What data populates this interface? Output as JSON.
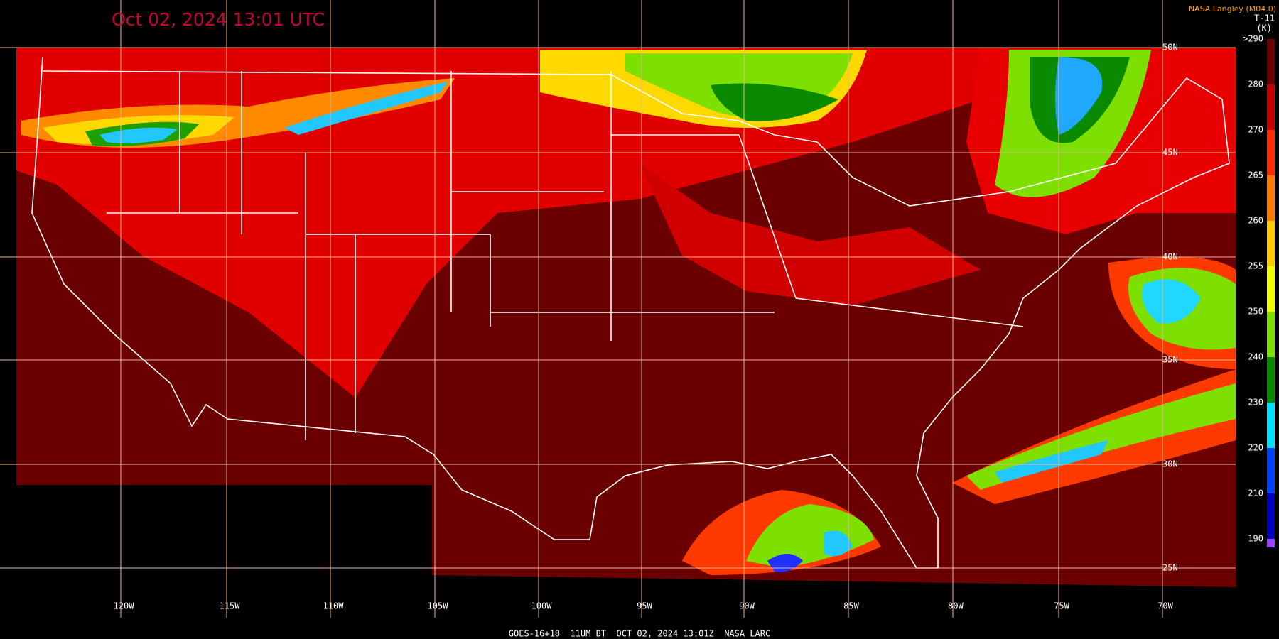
{
  "header": {
    "title": "Oct 02, 2024 13:01 UTC",
    "credit": "NASA Langley (M04.0)",
    "product": "T-11",
    "unit": "(K)"
  },
  "colorbar": {
    "ticks": [
      {
        "value": 290,
        "label": ">290"
      },
      280,
      270,
      265,
      260,
      255,
      250,
      240,
      230,
      220,
      210,
      190
    ],
    "colors": [
      "#6e0000",
      "#c40000",
      "#ff2a00",
      "#ff7a00",
      "#ffc800",
      "#f0ff00",
      "#7ee000",
      "#0a8a00",
      "#00e0ff",
      "#0040ff",
      "#0000c0",
      "#9a40ff"
    ]
  },
  "grid": {
    "lon_labels": [
      "120W",
      "115W",
      "110W",
      "105W",
      "100W",
      "95W",
      "90W",
      "85W",
      "80W",
      "75W",
      "70W"
    ],
    "lat_labels": [
      "50N",
      "45N",
      "40N",
      "35N",
      "30N",
      "25N"
    ]
  },
  "footer": "GOES-16+18  11UM BT  OCT 02, 2024 13:01Z  NASA LARC"
}
